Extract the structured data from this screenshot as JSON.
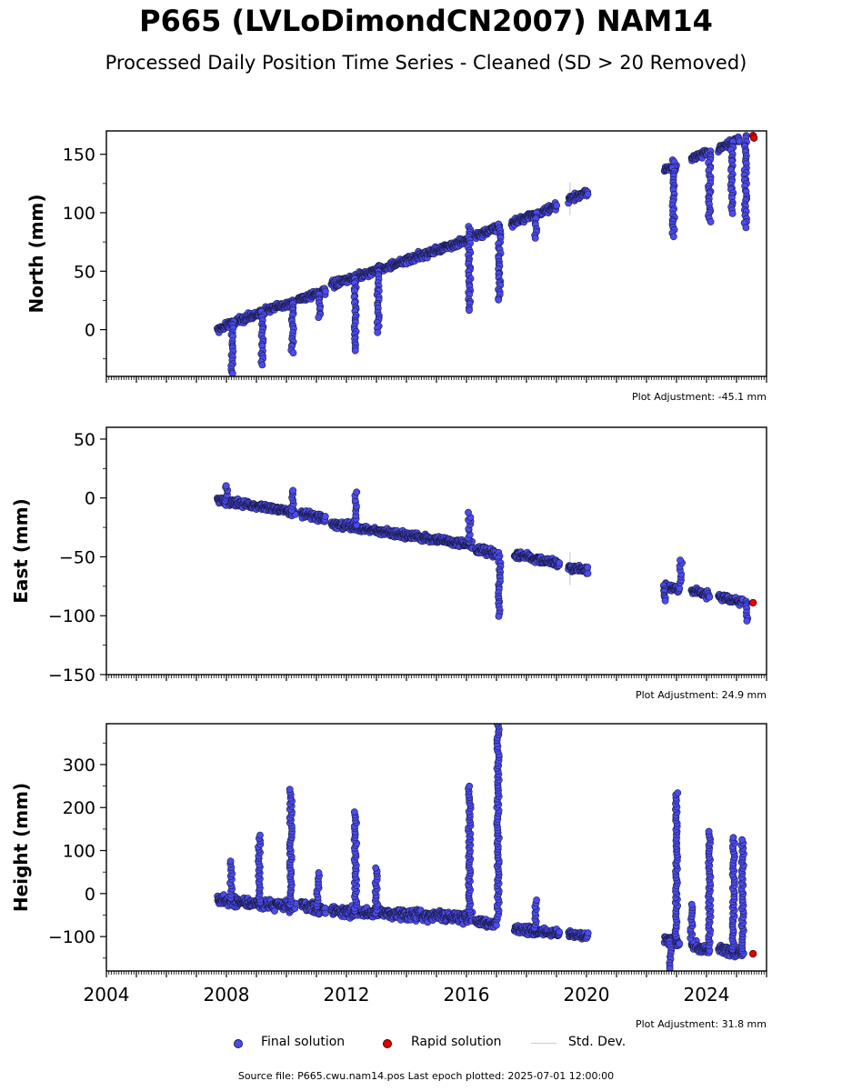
{
  "title": "P665 (LVLoDimondCN2007) NAM14",
  "subtitle": "Processed Daily Position Time Series - Cleaned (SD > 20 Removed)",
  "colors": {
    "final": "#4b4bf0",
    "final_edge": "#1a1a40",
    "rapid": "#e00000",
    "rapid_edge": "#400000",
    "stddev": "#cccccc"
  },
  "legend": {
    "final_label": "Final solution",
    "rapid_label": "Rapid solution",
    "stddev_label": "Std. Dev."
  },
  "source_text": "Source file: P665.cwu.nam14.pos  Last epoch plotted: 2025-07-01 12:00:00",
  "chart_data": [
    {
      "type": "scatter",
      "ylabel": "North (mm)",
      "adjustment": "Plot Adjustment: -45.1 mm",
      "xlim": [
        2004,
        2026
      ],
      "ylim": [
        -40,
        170
      ],
      "yticks": [
        0,
        50,
        100,
        150
      ],
      "x_tick_labels_shown": false,
      "final_segments": [
        [
          2007.7,
          2008.3,
          0,
          7,
          3
        ],
        [
          2008.3,
          2010.25,
          7,
          24,
          3
        ],
        [
          2010.4,
          2011.3,
          26,
          33,
          3
        ],
        [
          2011.5,
          2016.1,
          38,
          77,
          3
        ],
        [
          2016.3,
          2017.1,
          80,
          88,
          3
        ],
        [
          2017.5,
          2019.0,
          91,
          105,
          3
        ],
        [
          2019.4,
          2020.05,
          111,
          118,
          3
        ],
        [
          2022.6,
          2023.0,
          136,
          140,
          3
        ],
        [
          2023.5,
          2024.05,
          146,
          152,
          3
        ],
        [
          2024.4,
          2025.1,
          154,
          163,
          3
        ]
      ],
      "outlier_runs": [
        [
          2008.2,
          8,
          -38
        ],
        [
          2009.2,
          15,
          -30
        ],
        [
          2010.2,
          22,
          -20
        ],
        [
          2011.1,
          30,
          10
        ],
        [
          2012.3,
          44,
          -18
        ],
        [
          2013.05,
          50,
          -2
        ],
        [
          2016.1,
          88,
          17
        ],
        [
          2017.1,
          90,
          25
        ],
        [
          2018.3,
          100,
          78
        ],
        [
          2022.9,
          145,
          80
        ],
        [
          2024.1,
          152,
          92
        ],
        [
          2024.85,
          160,
          100
        ],
        [
          2025.3,
          166,
          88
        ]
      ],
      "rapid_points": [
        [
          2025.55,
          166
        ],
        [
          2025.58,
          164
        ]
      ]
    },
    {
      "type": "scatter",
      "ylabel": "East (mm)",
      "adjustment": "Plot Adjustment: 24.9 mm",
      "xlim": [
        2004,
        2026
      ],
      "ylim": [
        -150,
        60
      ],
      "yticks": [
        -150,
        -100,
        -50,
        0,
        50
      ],
      "x_tick_labels_shown": false,
      "final_segments": [
        [
          2007.7,
          2008.3,
          -2,
          -4,
          3
        ],
        [
          2008.3,
          2010.3,
          -4,
          -12,
          3
        ],
        [
          2010.5,
          2011.3,
          -13,
          -18,
          3
        ],
        [
          2011.5,
          2016.2,
          -22,
          -40,
          3
        ],
        [
          2016.3,
          2017.0,
          -44,
          -47,
          3
        ],
        [
          2017.6,
          2019.1,
          -48,
          -56,
          3
        ],
        [
          2019.4,
          2020.05,
          -59,
          -62,
          3
        ],
        [
          2022.6,
          2023.1,
          -75,
          -78,
          3
        ],
        [
          2023.5,
          2024.1,
          -79,
          -82,
          3
        ],
        [
          2024.4,
          2025.2,
          -84,
          -88,
          3
        ]
      ],
      "outlier_runs": [
        [
          2008.0,
          -2,
          11
        ],
        [
          2010.2,
          -10,
          7
        ],
        [
          2012.3,
          -22,
          4
        ],
        [
          2016.1,
          -38,
          -13
        ],
        [
          2017.1,
          -46,
          -100
        ],
        [
          2022.6,
          -75,
          -87
        ],
        [
          2023.15,
          -72,
          -53
        ],
        [
          2025.35,
          -88,
          -104
        ]
      ],
      "rapid_points": [
        [
          2025.55,
          -89
        ]
      ]
    },
    {
      "type": "scatter",
      "ylabel": "Height (mm)",
      "adjustment": "Plot Adjustment: 31.8 mm",
      "xlim": [
        2004,
        2026
      ],
      "ylim": [
        -180,
        395
      ],
      "yticks": [
        -100,
        0,
        100,
        200,
        300
      ],
      "x_tick_labels": [
        "2004",
        "2008",
        "2012",
        "2016",
        "2020",
        "2024"
      ],
      "x_tick_values": [
        2004,
        2008,
        2012,
        2016,
        2020,
        2024
      ],
      "final_segments": [
        [
          2007.7,
          2010.3,
          -15,
          -30,
          12
        ],
        [
          2010.5,
          2011.3,
          -30,
          -40,
          12
        ],
        [
          2011.5,
          2016.2,
          -40,
          -55,
          12
        ],
        [
          2016.3,
          2017.0,
          -65,
          -70,
          10
        ],
        [
          2017.6,
          2019.1,
          -80,
          -95,
          10
        ],
        [
          2019.4,
          2020.05,
          -95,
          -100,
          8
        ],
        [
          2022.6,
          2023.1,
          -105,
          -115,
          12
        ],
        [
          2023.5,
          2024.1,
          -120,
          -130,
          10
        ],
        [
          2024.4,
          2025.2,
          -130,
          -140,
          10
        ]
      ],
      "outlier_runs": [
        [
          2008.15,
          -10,
          75
        ],
        [
          2009.1,
          -20,
          135
        ],
        [
          2010.15,
          -25,
          242
        ],
        [
          2011.05,
          -30,
          48
        ],
        [
          2012.3,
          -40,
          190
        ],
        [
          2013.0,
          -45,
          60
        ],
        [
          2016.1,
          -50,
          250
        ],
        [
          2017.05,
          -60,
          395
        ],
        [
          2018.3,
          -80,
          -15
        ],
        [
          2022.8,
          -110,
          -175
        ],
        [
          2023.0,
          -100,
          235
        ],
        [
          2023.5,
          -110,
          -25
        ],
        [
          2024.1,
          -120,
          145
        ],
        [
          2024.9,
          -130,
          130
        ],
        [
          2025.2,
          -140,
          125
        ]
      ],
      "rapid_points": [
        [
          2025.55,
          -140
        ]
      ]
    }
  ]
}
